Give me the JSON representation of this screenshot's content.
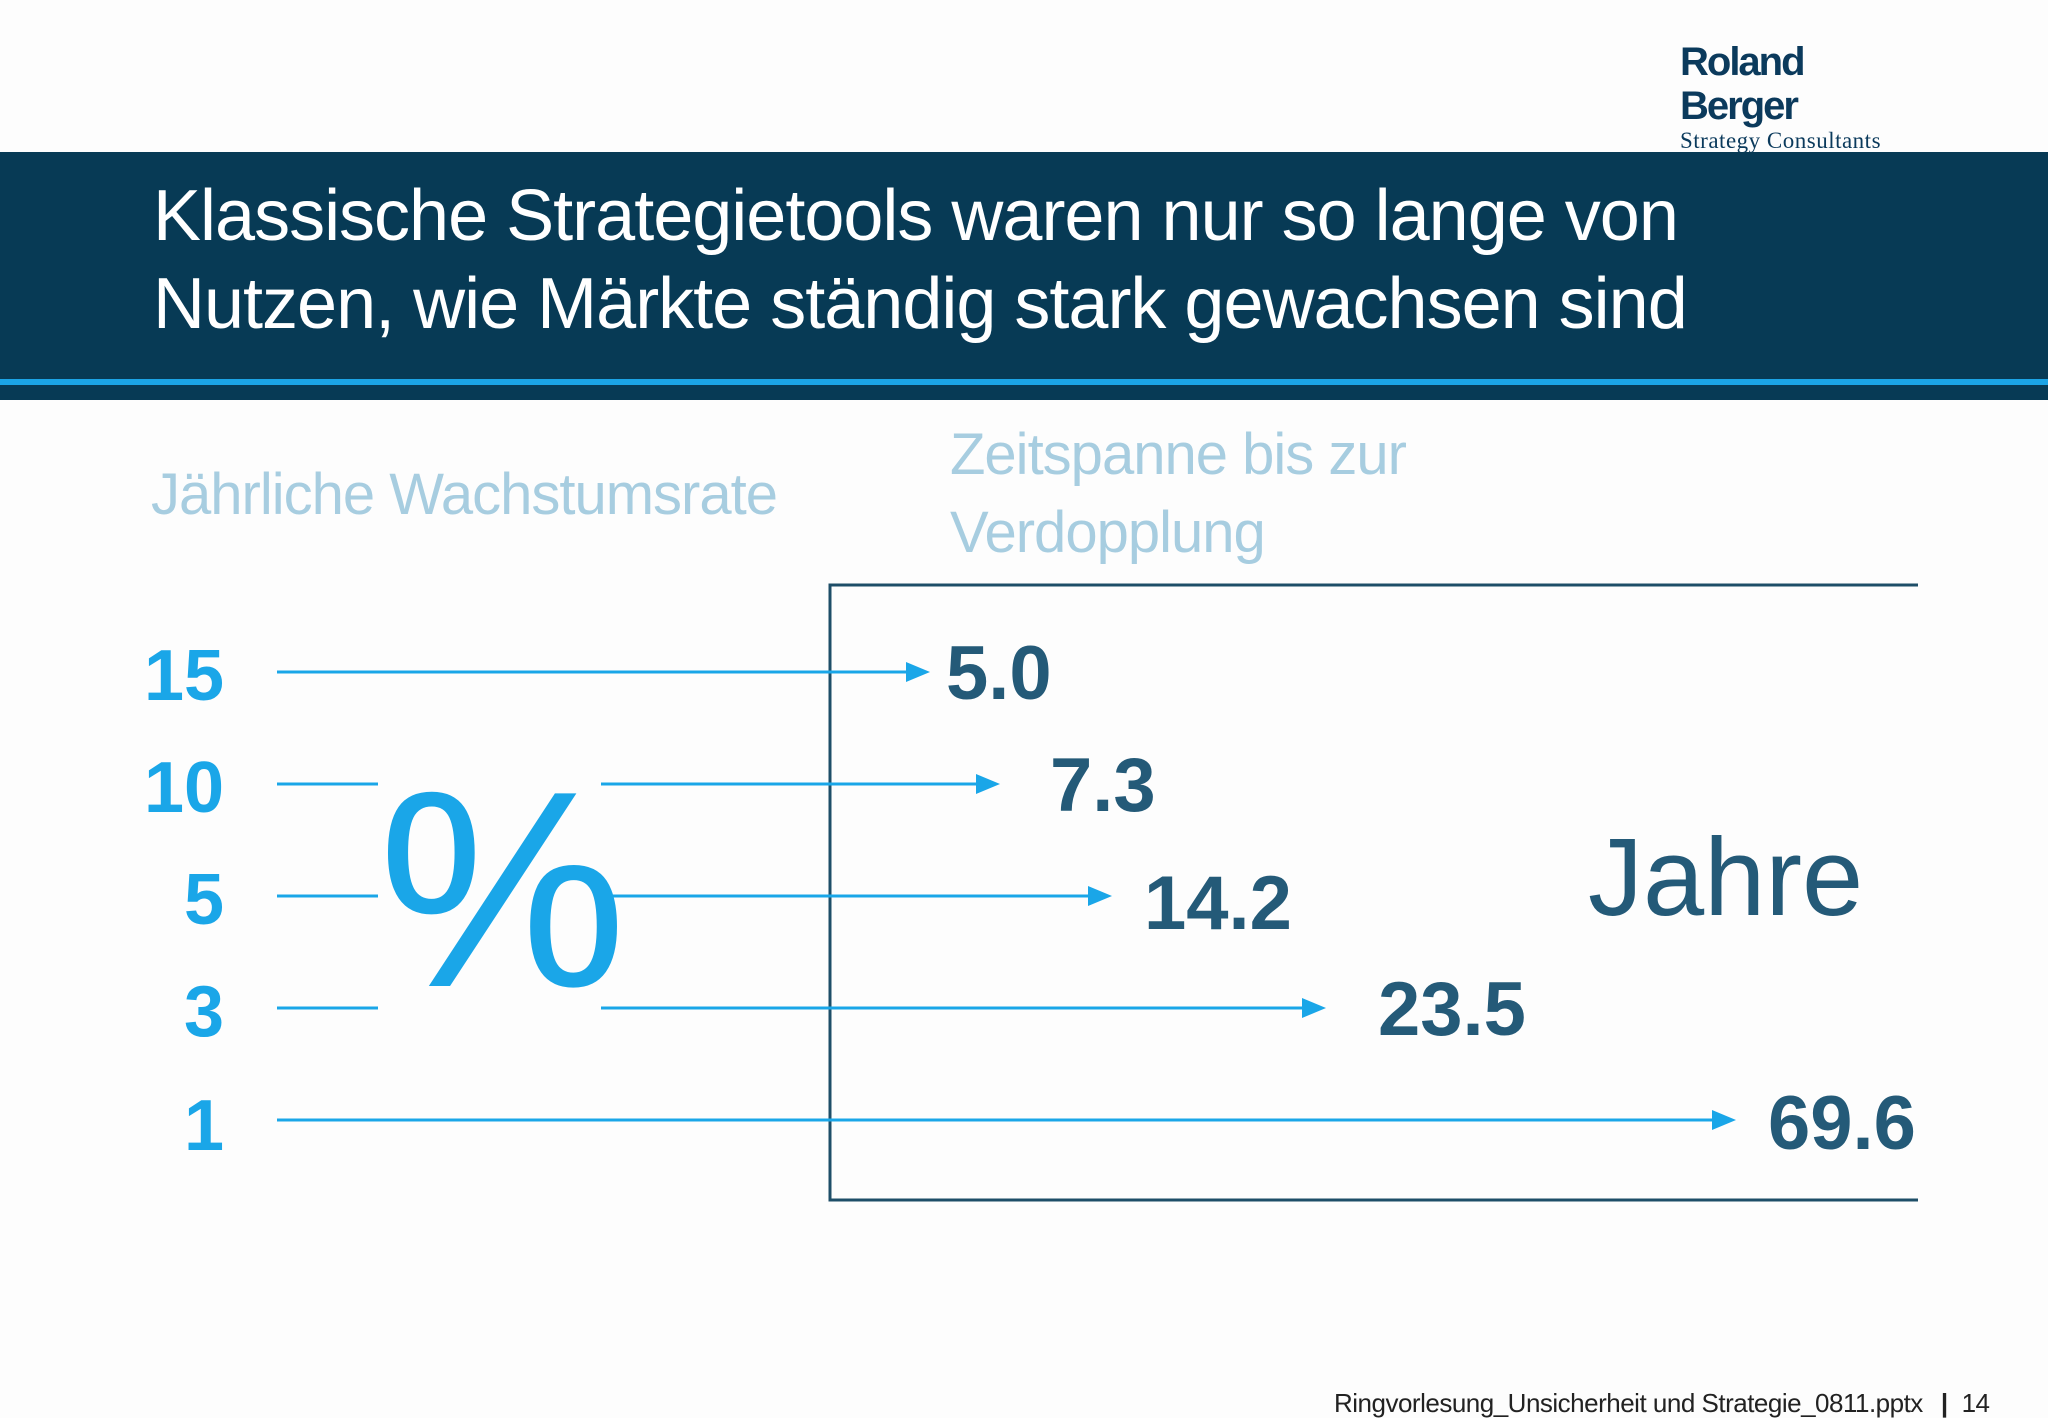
{
  "logo": {
    "name": "Roland Berger",
    "subtitle": "Strategy Consultants"
  },
  "title": {
    "line1": "Klassische Strategietools waren nur so lange von",
    "line2": "Nutzen, wie Märkte ständig stark gewachsen sind"
  },
  "headers": {
    "left": "Jährliche Wachstumsrate",
    "right_line1": "Zeitspanne bis zur",
    "right_line2": "Verdopplung"
  },
  "units": {
    "left": "%",
    "right": "Jahre"
  },
  "rows": [
    {
      "rate": "15",
      "years": "5.0"
    },
    {
      "rate": "10",
      "years": "7.3"
    },
    {
      "rate": "5",
      "years": "14.2"
    },
    {
      "rate": "3",
      "years": "23.5"
    },
    {
      "rate": "1",
      "years": "69.6"
    }
  ],
  "colors": {
    "banner": "#073a55",
    "accent": "#1aa6e8",
    "value": "#245a78",
    "header": "#a7cde0"
  },
  "footer": {
    "filename": "Ringvorlesung_Unsicherheit und Strategie_0811.pptx",
    "separator": "|",
    "page": "14"
  }
}
